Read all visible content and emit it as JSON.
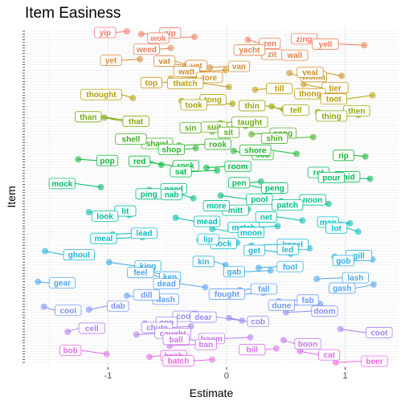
{
  "chart_data": {
    "type": "scatter",
    "title": "Item Easiness",
    "xlabel": "Estimate",
    "ylabel": "Item",
    "xlim": [
      -1.7,
      1.45
    ],
    "xticks": [
      -1,
      0,
      1
    ],
    "xtick_labels": [
      "-1",
      "0",
      "1"
    ],
    "y_tick_labels_shown": false,
    "grid": true,
    "legend": "none",
    "hue_range_by_rank": [
      "#F8766D",
      "#B79F00",
      "#00BA38",
      "#00BFC4",
      "#619CFF",
      "#F564E3"
    ],
    "points": [
      {
        "item": "yip",
        "estimate": -0.84
      },
      {
        "item": "zip",
        "estimate": -0.72
      },
      {
        "item": "wok",
        "estimate": -0.27
      },
      {
        "item": "zen",
        "estimate": 0.18
      },
      {
        "item": "zing",
        "estimate": 0.92
      },
      {
        "item": "yell",
        "estimate": 1.16
      },
      {
        "item": "weed",
        "estimate": -0.47
      },
      {
        "item": "zit",
        "estimate": 0.14
      },
      {
        "item": "yacht",
        "estimate": 0.54
      },
      {
        "item": "wall",
        "estimate": 0.37
      },
      {
        "item": "yet",
        "estimate": -0.73
      },
      {
        "item": "vet",
        "estimate": -0.56
      },
      {
        "item": "vat",
        "estimate": -0.34
      },
      {
        "item": "van",
        "estimate": -0.14
      },
      {
        "item": "watt",
        "estimate": -0.01
      },
      {
        "item": "womb",
        "estimate": 0.53
      },
      {
        "item": "veal",
        "estimate": 0.97
      },
      {
        "item": "tore",
        "estimate": -0.47
      },
      {
        "item": "top",
        "estimate": -0.45
      },
      {
        "item": "tier",
        "estimate": 0.65
      },
      {
        "item": "thatch",
        "estimate": 0.02
      },
      {
        "item": "till",
        "estimate": 0.24
      },
      {
        "item": "thong",
        "estimate": 0.99
      },
      {
        "item": "toot",
        "estimate": 1.23
      },
      {
        "item": "thought",
        "estimate": -0.79
      },
      {
        "item": "tong",
        "estimate": -0.38
      },
      {
        "item": "took",
        "estimate": 0.05
      },
      {
        "item": "tell",
        "estimate": 0.38
      },
      {
        "item": "thin",
        "estimate": 0.48
      },
      {
        "item": "then",
        "estimate": 0.77
      },
      {
        "item": "thing",
        "estimate": 1.11
      },
      {
        "item": "that",
        "estimate": -1.03
      },
      {
        "item": "than",
        "estimate": -0.84
      },
      {
        "item": "taught",
        "estimate": -0.05
      },
      {
        "item": "suit",
        "estimate": 0.16
      },
      {
        "item": "sit",
        "estimate": -0.29
      },
      {
        "item": "sin",
        "estimate": -0.12
      },
      {
        "item": "song",
        "estimate": 0.21
      },
      {
        "item": "shin",
        "estimate": 0.73
      },
      {
        "item": "shawl",
        "estimate": -0.81
      },
      {
        "item": "shell",
        "estimate": -0.52
      },
      {
        "item": "rook",
        "estimate": -0.4
      },
      {
        "item": "shop",
        "estimate": -0.26
      },
      {
        "item": "sob",
        "estimate": 0.06
      },
      {
        "item": "shore",
        "estimate": 0.59
      },
      {
        "item": "rip",
        "estimate": 1.17
      },
      {
        "item": "pop",
        "estimate": -1.25
      },
      {
        "item": "rock",
        "estimate": -0.67
      },
      {
        "item": "red",
        "estimate": -0.55
      },
      {
        "item": "room",
        "estimate": -0.17
      },
      {
        "item": "sat",
        "estimate": -0.08
      },
      {
        "item": "said",
        "estimate": 0.81
      },
      {
        "item": "rot",
        "estimate": 1.02
      },
      {
        "item": "pour",
        "estimate": 1.21
      },
      {
        "item": "pen",
        "estimate": 0.29
      },
      {
        "item": "peng",
        "estimate": 0.14
      },
      {
        "item": "mock",
        "estimate": -1.06
      },
      {
        "item": "need",
        "estimate": -0.65
      },
      {
        "item": "ping",
        "estimate": -0.39
      },
      {
        "item": "pool",
        "estimate": -0.05
      },
      {
        "item": "nab",
        "estimate": -0.28
      },
      {
        "item": "noon",
        "estimate": 0.46
      },
      {
        "item": "patch",
        "estimate": 0.86
      },
      {
        "item": "mitt",
        "estimate": -0.13
      },
      {
        "item": "more",
        "estimate": 0.18
      },
      {
        "item": "lit",
        "estimate": -1.16
      },
      {
        "item": "look",
        "estimate": -0.82
      },
      {
        "item": "mead",
        "estimate": -0.43
      },
      {
        "item": "net",
        "estimate": 0.64
      },
      {
        "item": "man",
        "estimate": 1.04
      },
      {
        "item": "match",
        "estimate": 0.43
      },
      {
        "item": "moon",
        "estimate": -0.12
      },
      {
        "item": "lot",
        "estimate": 1.11
      },
      {
        "item": "lead",
        "estimate": -0.96
      },
      {
        "item": "meal",
        "estimate": -0.71
      },
      {
        "item": "lock",
        "estimate": -0.23
      },
      {
        "item": "lip",
        "estimate": 0.09
      },
      {
        "item": "kneel",
        "estimate": 0.21
      },
      {
        "item": "led",
        "estimate": 0.7
      },
      {
        "item": "ghoul",
        "estimate": -1.53
      },
      {
        "item": "get",
        "estimate": 0.54
      },
      {
        "item": "gill",
        "estimate": 0.91
      },
      {
        "item": "gob",
        "estimate": 1.23
      },
      {
        "item": "king",
        "estimate": -0.99
      },
      {
        "item": "kin",
        "estimate": -0.01
      },
      {
        "item": "fool",
        "estimate": 0.27
      },
      {
        "item": "gab",
        "estimate": 0.37
      },
      {
        "item": "ken",
        "estimate": -0.66
      },
      {
        "item": "feel",
        "estimate": -0.46
      },
      {
        "item": "lash",
        "estimate": 0.76
      },
      {
        "item": "gear",
        "estimate": -1.59
      },
      {
        "item": "gash",
        "estimate": 1.24
      },
      {
        "item": "dead",
        "estimate": -0.18
      },
      {
        "item": "fall",
        "estimate": 0.11
      },
      {
        "item": "fought",
        "estimate": 0.31
      },
      {
        "item": "dash",
        "estimate": -0.84
      },
      {
        "item": "dill",
        "estimate": -0.47
      },
      {
        "item": "fab",
        "estimate": 0.44
      },
      {
        "item": "dune",
        "estimate": 0.79
      },
      {
        "item": "cool",
        "estimate": -1.54
      },
      {
        "item": "dab",
        "estimate": -1.16
      },
      {
        "item": "doom",
        "estimate": 0.5
      },
      {
        "item": "cook",
        "estimate": -0.14
      },
      {
        "item": "cob",
        "estimate": 0.02
      },
      {
        "item": "dear",
        "estimate": 0.13
      },
      {
        "item": "cop",
        "estimate": -0.69
      },
      {
        "item": "chute",
        "estimate": -0.3
      },
      {
        "item": "coot",
        "estimate": 0.96
      },
      {
        "item": "cell",
        "estimate": -1.34
      },
      {
        "item": "caught",
        "estimate": -0.76
      },
      {
        "item": "boom",
        "estimate": 0.2
      },
      {
        "item": "boon",
        "estimate": 0.48
      },
      {
        "item": "ball",
        "estimate": -0.16
      },
      {
        "item": "ban",
        "estimate": -0.48
      },
      {
        "item": "bill",
        "estimate": 0.42
      },
      {
        "item": "cat",
        "estimate": 0.62
      },
      {
        "item": "bob",
        "estimate": -1.01
      },
      {
        "item": "bash",
        "estimate": -0.65
      },
      {
        "item": "batch",
        "estimate": -0.12
      },
      {
        "item": "beer",
        "estimate": 0.92
      }
    ]
  }
}
